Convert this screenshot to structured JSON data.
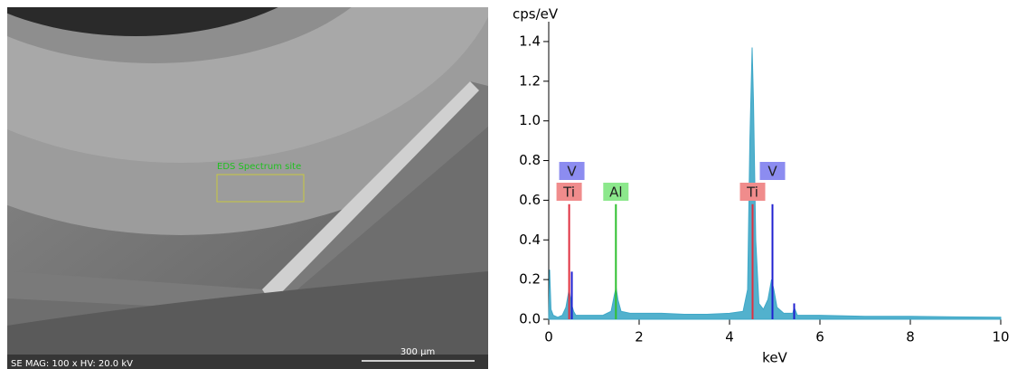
{
  "sem_image": {
    "roi_label": "EDS Spectrum site",
    "info": "SE  MAG: 100 x  HV: 20.0 kV",
    "scale_bar": "300 µm"
  },
  "chart_data": {
    "type": "area",
    "y_label": "cps/eV",
    "x_label": "keV",
    "color": "#3fa8c8",
    "xlim": [
      0,
      10
    ],
    "xticks": [
      0,
      2,
      4,
      6,
      8,
      10
    ],
    "ylim": [
      0,
      1.5
    ],
    "yticks": [
      {
        "value": 0,
        "label": "0.0"
      },
      0.2,
      0.4,
      0.6,
      0.8,
      {
        "value": 1,
        "label": "1.0"
      },
      1.2,
      1.4
    ],
    "x": [
      0.0,
      0.02,
      0.05,
      0.1,
      0.2,
      0.3,
      0.38,
      0.45,
      0.5,
      0.55,
      0.6,
      0.8,
      1.0,
      1.2,
      1.38,
      1.45,
      1.49,
      1.53,
      1.6,
      1.8,
      2.0,
      2.5,
      3.0,
      3.5,
      4.0,
      4.3,
      4.4,
      4.45,
      4.5,
      4.53,
      4.58,
      4.65,
      4.75,
      4.85,
      4.93,
      4.98,
      5.05,
      5.2,
      5.4,
      5.43,
      5.5,
      6.0,
      7.0,
      8.0,
      9.0,
      10.0
    ],
    "values": [
      0.0,
      0.25,
      0.05,
      0.02,
      0.01,
      0.02,
      0.06,
      0.15,
      0.08,
      0.04,
      0.02,
      0.02,
      0.02,
      0.02,
      0.04,
      0.12,
      0.16,
      0.1,
      0.04,
      0.03,
      0.03,
      0.03,
      0.025,
      0.025,
      0.03,
      0.04,
      0.15,
      0.9,
      1.37,
      1.1,
      0.4,
      0.08,
      0.05,
      0.1,
      0.2,
      0.15,
      0.06,
      0.03,
      0.03,
      0.06,
      0.02,
      0.02,
      0.015,
      0.015,
      0.012,
      0.01
    ],
    "element_lines": [
      {
        "label": "Ti",
        "energy": 0.452,
        "height": 0.58,
        "color": "#e03040",
        "label_color": "#f08c8c"
      },
      {
        "label": "V",
        "energy": 0.511,
        "height": 0.24,
        "color": "#2020d0",
        "label_color": "#8c8cf0"
      },
      {
        "label": "Al",
        "energy": 1.486,
        "height": 0.58,
        "color": "#30c030",
        "label_color": "#8ce88c"
      },
      {
        "label": "Ti",
        "energy": 4.51,
        "height": 0.58,
        "color": "#e03040",
        "label_color": "#f08c8c"
      },
      {
        "label": "V",
        "energy": 4.95,
        "height": 0.58,
        "color": "#2020d0",
        "label_color": "#8c8cf0"
      },
      {
        "energy": 5.43,
        "height": 0.08,
        "color": "#2020d0"
      }
    ]
  }
}
